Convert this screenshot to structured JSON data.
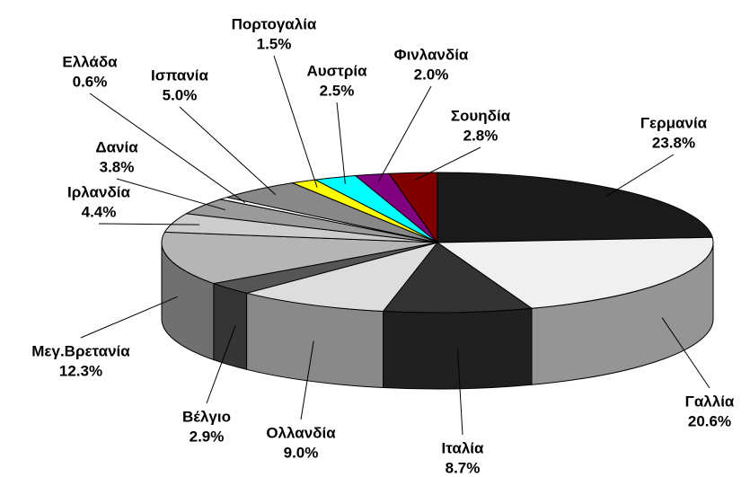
{
  "chart_data": {
    "type": "pie3d",
    "categories": [
      "Γερμανία",
      "Γαλλία",
      "Ιταλία",
      "Ολλανδία",
      "Βέλγιο",
      "Μεγ.Βρετανία",
      "Ιρλανδία",
      "Δανία",
      "Ελλάδα",
      "Ισπανία",
      "Πορτογαλία",
      "Αυστρία",
      "Φινλανδία",
      "Σουηδία"
    ],
    "values": [
      23.8,
      20.6,
      8.7,
      9.0,
      2.9,
      12.3,
      4.4,
      3.8,
      0.6,
      5.0,
      1.5,
      2.5,
      2.0,
      2.8
    ],
    "value_labels": [
      "23.8%",
      "20.6%",
      "8.7%",
      "9.0%",
      "2.9%",
      "12.3%",
      "4.4%",
      "3.8%",
      "0.6%",
      "5.0%",
      "1.5%",
      "2.5%",
      "2.0%",
      "2.8%"
    ],
    "colors": [
      "#1a1a1a",
      "#f0f0f0",
      "#333333",
      "#dddddd",
      "#555555",
      "#b5b5b5",
      "#cccccc",
      "#9a9a9a",
      "#ffffff",
      "#888888",
      "#ffff00",
      "#00ffff",
      "#800080",
      "#800000"
    ]
  }
}
